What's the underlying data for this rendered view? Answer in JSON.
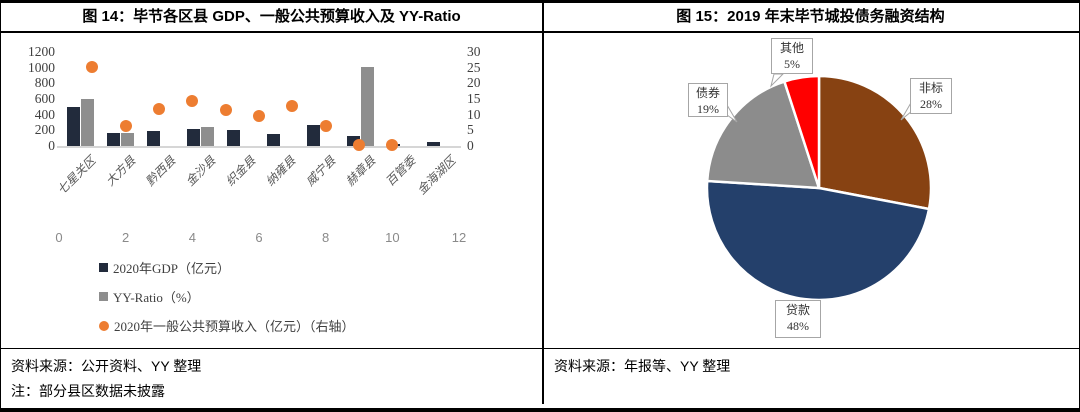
{
  "figures": {
    "left": {
      "title": "图 14：毕节各区县 GDP、一般公共预算收入及 YY-Ratio",
      "source": "资料来源：公开资料、YY 整理",
      "note": "注：部分县区数据未披露"
    },
    "right": {
      "title": "图 15：2019 年末毕节城投债务融资结构",
      "source": "资料来源：年报等、YY 整理"
    }
  },
  "chart_data": [
    {
      "type": "bar",
      "title": "图 14：毕节各区县 GDP、一般公共预算收入及 YY-Ratio",
      "categories": [
        "七星关区",
        "大方县",
        "黔西县",
        "金沙县",
        "织金县",
        "纳雍县",
        "威宁县",
        "赫章县",
        "百管委",
        "金海湖区"
      ],
      "series": [
        {
          "name": "2020年GDP（亿元）",
          "type": "bar",
          "axis": "left",
          "color": "#222B3C",
          "values": [
            500,
            160,
            190,
            220,
            205,
            150,
            265,
            130,
            25,
            50
          ]
        },
        {
          "name": "YY-Ratio（%）",
          "type": "bar",
          "axis": "right",
          "color": "#8E8E8E",
          "values": [
            15,
            4.3,
            null,
            6.2,
            null,
            null,
            null,
            25.2,
            null,
            null
          ]
        },
        {
          "name": "2020年一般公共预算收入（亿元）（右轴）",
          "type": "scatter",
          "axis": "right",
          "color": "#ED7D31",
          "values": [
            25.2,
            6.5,
            11.8,
            14.3,
            11.5,
            9.6,
            12.9,
            6.3,
            0.3,
            0.3
          ]
        }
      ],
      "left_axis": {
        "min": 0,
        "max": 1200,
        "ticks": [
          1200,
          1000,
          800,
          600,
          400,
          200,
          0
        ]
      },
      "right_axis": {
        "min": 0,
        "max": 30,
        "ticks": [
          30,
          25,
          20,
          15,
          10,
          5,
          0
        ]
      },
      "secondary_x_axis": {
        "min": 0,
        "max": 12,
        "ticks": [
          0,
          2,
          4,
          6,
          8,
          10,
          12
        ]
      },
      "legend_position": "bottom-left",
      "grid": false
    },
    {
      "type": "pie",
      "title": "图 15：2019 年末毕节城投债务融资结构",
      "slices": [
        {
          "label": "非标",
          "value_pct": 28,
          "color": "#874212"
        },
        {
          "label": "贷款",
          "value_pct": 48,
          "color": "#24406B"
        },
        {
          "label": "债券",
          "value_pct": 19,
          "color": "#8C8C8C"
        },
        {
          "label": "其他",
          "value_pct": 5,
          "color": "#FF0000"
        }
      ],
      "start_angle_deg": 0,
      "direction": "clockwise",
      "labels": "callout-boxes"
    }
  ]
}
